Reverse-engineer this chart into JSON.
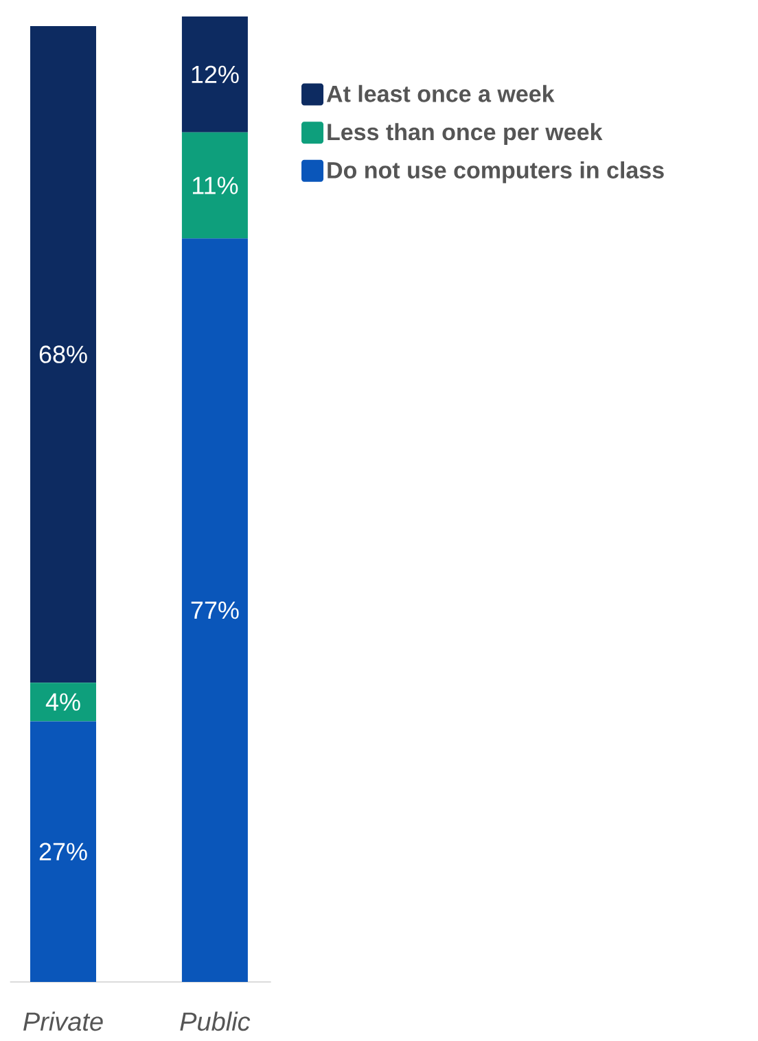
{
  "chart_data": {
    "type": "bar",
    "stacked": true,
    "legend": "right",
    "categories": [
      "Private",
      "Public"
    ],
    "series": [
      {
        "name": "Do not use computers in class",
        "color": "#0a56ba",
        "values": [
          27,
          77
        ],
        "value_labels": [
          "27%",
          "77%"
        ]
      },
      {
        "name": "Less than once per week",
        "color": "#0e9f7c",
        "values": [
          4,
          11
        ],
        "value_labels": [
          "4%",
          "11%"
        ]
      },
      {
        "name": "At least once a week",
        "color": "#0d2b61",
        "values": [
          68,
          12
        ],
        "value_labels": [
          "68%",
          "12%"
        ]
      }
    ]
  }
}
